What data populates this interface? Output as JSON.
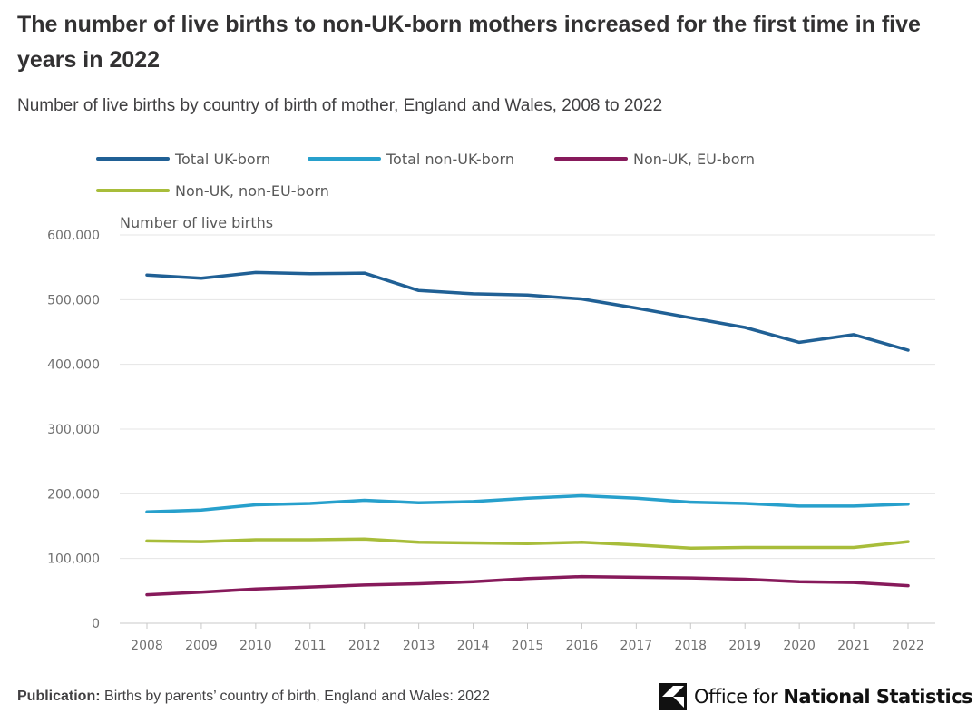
{
  "header": {
    "title": "The number of live births to non-UK-born mothers increased for the first time in five years in 2022",
    "subtitle": "Number of live births by country of birth of mother, England and Wales, 2008 to 2022"
  },
  "footer": {
    "publication_label": "Publication:",
    "publication_text": "Births by parents’ country of birth, England and Wales: 2022"
  },
  "logo": {
    "part1": "Office for ",
    "part2": "National Statistics",
    "icon": "ons-logo-icon"
  },
  "colors": {
    "uk_born": "#206095",
    "non_uk_born": "#27a0cc",
    "eu_born": "#871a5b",
    "non_eu_born": "#a8bd3a",
    "gridline": "#e5e5e5",
    "axis": "#c8c8c8"
  },
  "chart_data": {
    "type": "line",
    "title": "The number of live births to non-UK-born mothers increased for the first time in five years in 2022",
    "subtitle": "Number of live births by country of birth of mother, England and Wales, 2008 to 2022",
    "xlabel": "",
    "ylabel": "Number of live births",
    "ylim": [
      0,
      600000
    ],
    "yticks": [
      0,
      100000,
      200000,
      300000,
      400000,
      500000,
      600000
    ],
    "ytick_labels": [
      "0",
      "100,000",
      "200,000",
      "300,000",
      "400,000",
      "500,000",
      "600,000"
    ],
    "grid": true,
    "legend_position": "top-left",
    "x": [
      "2008",
      "2009",
      "2010",
      "2011",
      "2012",
      "2013",
      "2014",
      "2015",
      "2016",
      "2017",
      "2018",
      "2019",
      "2020",
      "2021",
      "2022"
    ],
    "series": [
      {
        "name": "Total UK-born",
        "color_key": "uk_born",
        "values": [
          538000,
          533000,
          542000,
          540000,
          541000,
          514000,
          509000,
          507000,
          501000,
          487000,
          472000,
          457000,
          434000,
          446000,
          422000
        ]
      },
      {
        "name": "Total non-UK-born",
        "color_key": "non_uk_born",
        "values": [
          172000,
          175000,
          183000,
          185000,
          190000,
          186000,
          188000,
          193000,
          197000,
          193000,
          187000,
          185000,
          181000,
          181000,
          184000
        ]
      },
      {
        "name": "Non-UK, EU-born",
        "color_key": "eu_born",
        "values": [
          44000,
          48000,
          53000,
          56000,
          59000,
          61000,
          64000,
          69000,
          72000,
          71000,
          70000,
          68000,
          64000,
          63000,
          58000
        ]
      },
      {
        "name": "Non-UK, non-EU-born",
        "color_key": "non_eu_born",
        "values": [
          127000,
          126000,
          129000,
          129000,
          130000,
          125000,
          124000,
          123000,
          125000,
          121000,
          116000,
          117000,
          117000,
          117000,
          126000
        ]
      }
    ]
  }
}
